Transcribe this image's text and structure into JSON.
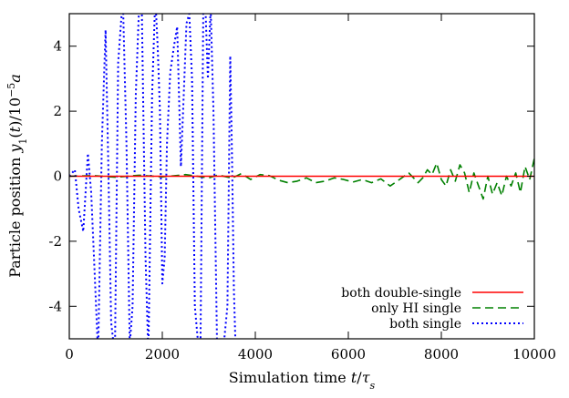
{
  "chart_data": {
    "type": "line",
    "xlabel": "Simulation time t/τ_s",
    "ylabel": "Particle position y_1(t)/10^-5 a",
    "xlim": [
      0,
      10000
    ],
    "ylim": [
      -5,
      5
    ],
    "x_ticks": [
      "0",
      "2000",
      "4000",
      "6000",
      "8000",
      "10000"
    ],
    "y_ticks": [
      "-4",
      "-2",
      "0",
      "2",
      "4"
    ],
    "grid": false,
    "legend_position": "bottom-right",
    "series": [
      {
        "name": "both double-single",
        "color": "#ff0000",
        "style": "solid",
        "x": [
          0,
          10000
        ],
        "y": [
          0,
          0
        ]
      },
      {
        "name": "only HI single",
        "color": "#008000",
        "style": "dashed",
        "x": [
          0,
          500,
          1000,
          1500,
          2000,
          2500,
          3000,
          3200,
          3500,
          3700,
          3900,
          4100,
          4300,
          4500,
          4700,
          4900,
          5100,
          5300,
          5500,
          5700,
          5900,
          6100,
          6300,
          6500,
          6700,
          6900,
          7100,
          7300,
          7500,
          7600,
          7700,
          7800,
          7900,
          8000,
          8100,
          8200,
          8300,
          8400,
          8500,
          8600,
          8700,
          8800,
          8900,
          9000,
          9100,
          9200,
          9300,
          9400,
          9500,
          9600,
          9700,
          9800,
          9900,
          10000
        ],
        "y": [
          0,
          0.02,
          -0.03,
          0.03,
          -0.02,
          0.05,
          -0.05,
          0.04,
          -0.06,
          0.08,
          -0.1,
          0.05,
          0.02,
          -0.12,
          -0.2,
          -0.15,
          -0.05,
          -0.2,
          -0.15,
          -0.05,
          -0.1,
          -0.18,
          -0.1,
          -0.2,
          -0.08,
          -0.3,
          -0.1,
          0.1,
          -0.2,
          -0.05,
          0.2,
          0.05,
          0.4,
          -0.1,
          -0.3,
          0.2,
          -0.15,
          0.35,
          0.1,
          -0.5,
          0.1,
          -0.3,
          -0.7,
          0.0,
          -0.55,
          -0.2,
          -0.6,
          0.0,
          -0.3,
          0.1,
          -0.5,
          0.3,
          -0.1,
          0.55
        ]
      },
      {
        "name": "both single",
        "color": "#0000ff",
        "style": "dotted",
        "x": [
          0,
          60,
          120,
          200,
          300,
          400,
          470,
          560,
          620,
          700,
          780,
          840,
          900,
          980,
          1050,
          1150,
          1230,
          1300,
          1360,
          1430,
          1500,
          1560,
          1640,
          1700,
          1780,
          1850,
          1900,
          1950,
          2000,
          2050,
          2100,
          2170,
          2250,
          2320,
          2400,
          2460,
          2520,
          2580,
          2640,
          2700,
          2760,
          2820,
          2880,
          2920,
          2980,
          3040,
          3100,
          3180,
          3300,
          3400,
          3460,
          3500,
          3540,
          3580
        ],
        "y": [
          0,
          0.1,
          0.2,
          -1.0,
          -1.7,
          0.7,
          -0.5,
          -3.5,
          -5.5,
          1.0,
          4.5,
          0.3,
          -4.5,
          -5.5,
          3.5,
          5.5,
          1.0,
          -5.2,
          -4.0,
          2.5,
          5.2,
          5.0,
          -2.5,
          -5.5,
          2.5,
          5.5,
          4.0,
          2.0,
          -3.3,
          -2.5,
          1.0,
          3.2,
          4.0,
          4.6,
          0.3,
          2.5,
          4.7,
          5.0,
          3.0,
          -4.0,
          -5.0,
          -5.5,
          5.0,
          5.5,
          3.0,
          5.2,
          2.0,
          -5.5,
          -5.5,
          -4.0,
          3.7,
          0.5,
          -3.5,
          -5.5
        ]
      }
    ]
  }
}
